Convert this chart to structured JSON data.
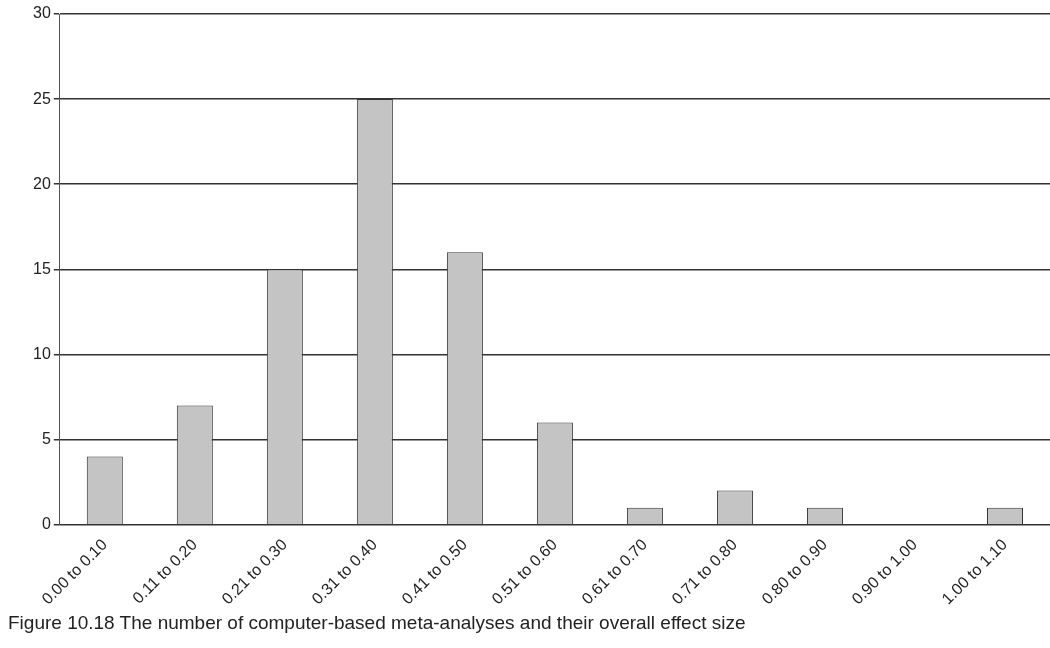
{
  "chart_data": {
    "type": "bar",
    "categories": [
      "0.00 to 0.10",
      "0.11 to 0.20",
      "0.21 to 0.30",
      "0.31 to 0.40",
      "0.41 to 0.50",
      "0.51 to 0.60",
      "0.61 to 0.70",
      "0.71 to 0.80",
      "0.80 to 0.90",
      "0.90 to 1.00",
      "1.00 to 1.10"
    ],
    "values": [
      4,
      7,
      15,
      25,
      16,
      6,
      1,
      2,
      1,
      0,
      1
    ],
    "color": "#c4c4c4",
    "ylim": [
      0,
      30
    ],
    "yticks": [
      0,
      5,
      10,
      15,
      20,
      25,
      30
    ],
    "grid": "y",
    "annotations": [
      "Figure 10.18 The number of computer-based meta-analyses and their overall effect size"
    ]
  }
}
